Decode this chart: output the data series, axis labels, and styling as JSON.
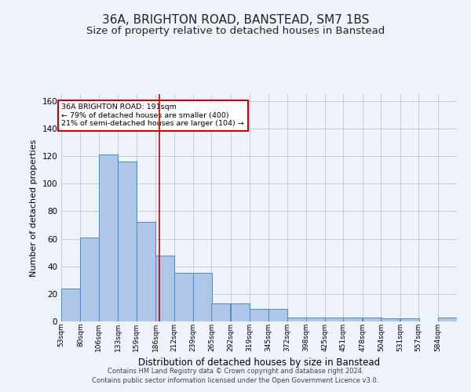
{
  "title": "36A, BRIGHTON ROAD, BANSTEAD, SM7 1BS",
  "subtitle": "Size of property relative to detached houses in Banstead",
  "xlabel": "Distribution of detached houses by size in Banstead",
  "ylabel": "Number of detached properties",
  "bin_labels": [
    "53sqm",
    "80sqm",
    "106sqm",
    "133sqm",
    "159sqm",
    "186sqm",
    "212sqm",
    "239sqm",
    "265sqm",
    "292sqm",
    "319sqm",
    "345sqm",
    "372sqm",
    "398sqm",
    "425sqm",
    "451sqm",
    "478sqm",
    "504sqm",
    "531sqm",
    "557sqm",
    "584sqm"
  ],
  "bar_values": [
    24,
    61,
    121,
    116,
    72,
    48,
    35,
    35,
    13,
    13,
    9,
    9,
    3,
    3,
    3,
    3,
    3,
    2,
    2,
    0,
    3
  ],
  "bar_color": "#aec6e8",
  "bar_edge_color": "#5588bb",
  "ylim": [
    0,
    165
  ],
  "yticks": [
    0,
    20,
    40,
    60,
    80,
    100,
    120,
    140,
    160
  ],
  "property_size": 191,
  "red_line_color": "#cc0000",
  "annotation_text": "36A BRIGHTON ROAD: 191sqm\n← 79% of detached houses are smaller (400)\n21% of semi-detached houses are larger (104) →",
  "annotation_box_color": "#ffffff",
  "annotation_border_color": "#cc0000",
  "footer_line1": "Contains HM Land Registry data © Crown copyright and database right 2024.",
  "footer_line2": "Contains public sector information licensed under the Open Government Licence v3.0.",
  "background_color": "#eef2fb",
  "grid_color": "#bbbbcc",
  "title_fontsize": 11,
  "subtitle_fontsize": 9.5,
  "xlabel_fontsize": 8.5,
  "ylabel_fontsize": 8,
  "bin_width": 27
}
